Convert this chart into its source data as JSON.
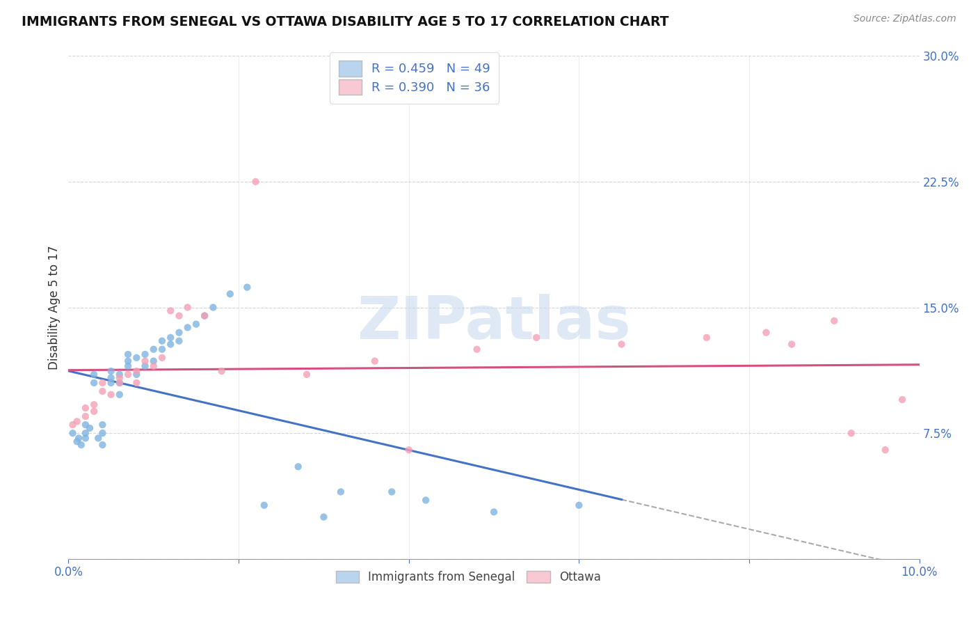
{
  "title": "IMMIGRANTS FROM SENEGAL VS OTTAWA DISABILITY AGE 5 TO 17 CORRELATION CHART",
  "source": "Source: ZipAtlas.com",
  "ylabel": "Disability Age 5 to 17",
  "xlim": [
    0.0,
    0.1
  ],
  "ylim": [
    0.0,
    0.3
  ],
  "xticks": [
    0.0,
    0.02,
    0.04,
    0.06,
    0.08,
    0.1
  ],
  "xticklabels": [
    "0.0%",
    "",
    "",
    "",
    "",
    "10.0%"
  ],
  "yticks": [
    0.0,
    0.075,
    0.15,
    0.225,
    0.3
  ],
  "yticklabels": [
    "",
    "7.5%",
    "15.0%",
    "22.5%",
    "30.0%"
  ],
  "watermark": "ZIPatlas",
  "legend_r1": "R = 0.459",
  "legend_n1": "N = 49",
  "legend_r2": "R = 0.390",
  "legend_n2": "N = 36",
  "color_blue": "#7fb3e0",
  "color_pink": "#f4a0b5",
  "color_blue_light": "#b8d4ee",
  "color_pink_light": "#f8c8d4",
  "color_axis_blue": "#4472C4",
  "color_line_blue": "#4472C4",
  "color_line_pink": "#d45080",
  "color_dash": "#aaaaaa",
  "background_color": "#ffffff",
  "grid_color": "#cccccc",
  "senegal_x": [
    0.0005,
    0.001,
    0.0012,
    0.0015,
    0.002,
    0.002,
    0.002,
    0.0025,
    0.003,
    0.003,
    0.0035,
    0.004,
    0.004,
    0.004,
    0.005,
    0.005,
    0.005,
    0.006,
    0.006,
    0.006,
    0.007,
    0.007,
    0.007,
    0.008,
    0.008,
    0.009,
    0.009,
    0.01,
    0.01,
    0.011,
    0.011,
    0.012,
    0.012,
    0.013,
    0.013,
    0.014,
    0.015,
    0.016,
    0.017,
    0.019,
    0.021,
    0.023,
    0.027,
    0.03,
    0.032,
    0.038,
    0.042,
    0.05,
    0.06
  ],
  "senegal_y": [
    0.075,
    0.07,
    0.072,
    0.068,
    0.075,
    0.072,
    0.08,
    0.078,
    0.11,
    0.105,
    0.072,
    0.068,
    0.075,
    0.08,
    0.105,
    0.108,
    0.112,
    0.098,
    0.105,
    0.11,
    0.115,
    0.118,
    0.122,
    0.11,
    0.12,
    0.115,
    0.122,
    0.118,
    0.125,
    0.13,
    0.125,
    0.132,
    0.128,
    0.135,
    0.13,
    0.138,
    0.14,
    0.145,
    0.15,
    0.158,
    0.162,
    0.032,
    0.055,
    0.025,
    0.04,
    0.04,
    0.035,
    0.028,
    0.032
  ],
  "ottawa_x": [
    0.0005,
    0.001,
    0.002,
    0.002,
    0.003,
    0.003,
    0.004,
    0.004,
    0.005,
    0.006,
    0.006,
    0.007,
    0.008,
    0.008,
    0.009,
    0.01,
    0.011,
    0.012,
    0.013,
    0.014,
    0.016,
    0.018,
    0.022,
    0.028,
    0.036,
    0.04,
    0.048,
    0.055,
    0.065,
    0.075,
    0.082,
    0.085,
    0.09,
    0.092,
    0.096,
    0.098
  ],
  "ottawa_y": [
    0.08,
    0.082,
    0.085,
    0.09,
    0.088,
    0.092,
    0.1,
    0.105,
    0.098,
    0.105,
    0.108,
    0.11,
    0.105,
    0.112,
    0.118,
    0.115,
    0.12,
    0.148,
    0.145,
    0.15,
    0.145,
    0.112,
    0.225,
    0.11,
    0.118,
    0.065,
    0.125,
    0.132,
    0.128,
    0.132,
    0.135,
    0.128,
    0.142,
    0.075,
    0.065,
    0.095
  ]
}
